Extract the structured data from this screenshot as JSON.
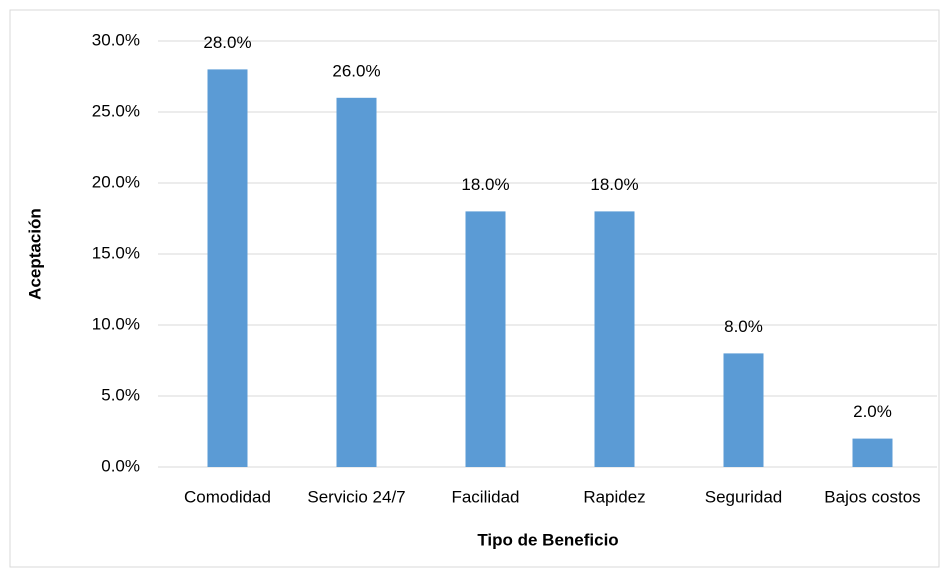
{
  "chart_data": {
    "type": "bar",
    "xlabel": "Tipo de Beneficio",
    "ylabel": "Aceptación",
    "categories": [
      "Comodidad",
      "Servicio 24/7",
      "Facilidad",
      "Rapidez",
      "Seguridad",
      "Bajos costos"
    ],
    "values": [
      28,
      26,
      18,
      18,
      8,
      2
    ],
    "value_labels": [
      "28.0%",
      "26.0%",
      "18.0%",
      "18.0%",
      "8.0%",
      "2.0%"
    ],
    "color": "#5b9bd5",
    "ylim": [
      0,
      30
    ],
    "yticks": [
      {
        "value": 0,
        "label": "0.0%"
      },
      {
        "value": 5,
        "label": "5.0%"
      },
      {
        "value": 10,
        "label": "10.0%"
      },
      {
        "value": 15,
        "label": "15.0%"
      },
      {
        "value": 20,
        "label": "20.0%"
      },
      {
        "value": 25,
        "label": "25.0%"
      },
      {
        "value": 30,
        "label": "30.0%"
      }
    ],
    "grid": true
  }
}
